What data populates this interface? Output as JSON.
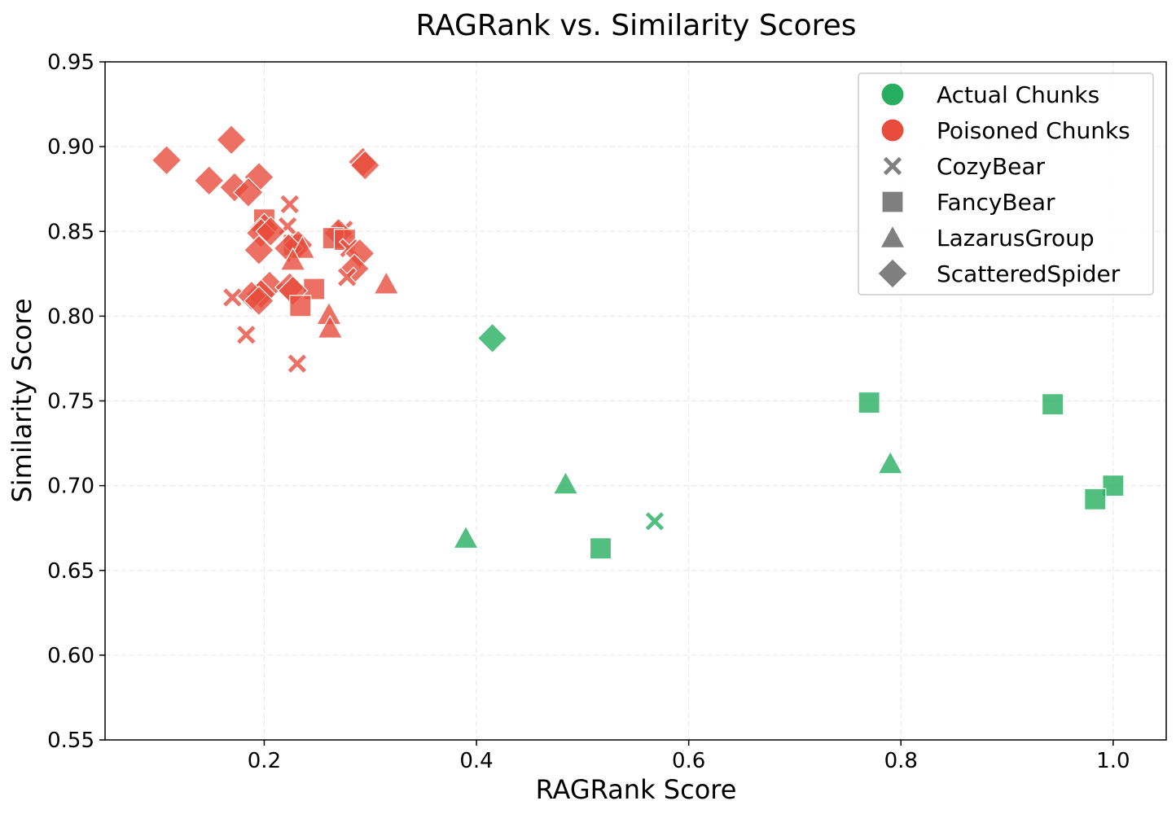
{
  "chart_data": {
    "type": "scatter",
    "title": "RAGRank vs. Similarity Scores",
    "xlabel": "RAGRank Score",
    "ylabel": "Similarity Score",
    "xlim": [
      0.05,
      1.05
    ],
    "ylim": [
      0.55,
      0.95
    ],
    "xticks": [
      0.2,
      0.4,
      0.6,
      0.8,
      1.0
    ],
    "xtick_labels": [
      "0.2",
      "0.4",
      "0.6",
      "0.8",
      "1.0"
    ],
    "yticks": [
      0.55,
      0.6,
      0.65,
      0.7,
      0.75,
      0.8,
      0.85,
      0.9,
      0.95
    ],
    "ytick_labels": [
      "0.55",
      "0.60",
      "0.65",
      "0.70",
      "0.75",
      "0.80",
      "0.85",
      "0.90",
      "0.95"
    ],
    "grid": true,
    "legend_position": "top-right",
    "colors": {
      "actual": "#27ae60",
      "poisoned": "#e74c3c",
      "legend_marker": "#7f7f7f"
    },
    "hue_legend": [
      {
        "label": "Actual Chunks",
        "group": "actual"
      },
      {
        "label": "Poisoned Chunks",
        "group": "poisoned"
      }
    ],
    "style_legend": [
      {
        "label": "CozyBear",
        "marker": "x"
      },
      {
        "label": "FancyBear",
        "marker": "square"
      },
      {
        "label": "LazarusGroup",
        "marker": "triangle"
      },
      {
        "label": "ScatteredSpider",
        "marker": "diamond"
      }
    ],
    "points": [
      {
        "x": 0.415,
        "y": 0.787,
        "group": "actual",
        "marker": "diamond"
      },
      {
        "x": 0.77,
        "y": 0.749,
        "group": "actual",
        "marker": "square"
      },
      {
        "x": 0.943,
        "y": 0.748,
        "group": "actual",
        "marker": "square"
      },
      {
        "x": 0.79,
        "y": 0.713,
        "group": "actual",
        "marker": "triangle"
      },
      {
        "x": 0.484,
        "y": 0.701,
        "group": "actual",
        "marker": "triangle"
      },
      {
        "x": 1.0,
        "y": 0.7,
        "group": "actual",
        "marker": "square"
      },
      {
        "x": 0.983,
        "y": 0.692,
        "group": "actual",
        "marker": "square"
      },
      {
        "x": 0.568,
        "y": 0.679,
        "group": "actual",
        "marker": "x"
      },
      {
        "x": 0.39,
        "y": 0.669,
        "group": "actual",
        "marker": "triangle"
      },
      {
        "x": 0.517,
        "y": 0.663,
        "group": "actual",
        "marker": "square"
      },
      {
        "x": 0.169,
        "y": 0.904,
        "group": "poisoned",
        "marker": "diamond"
      },
      {
        "x": 0.108,
        "y": 0.892,
        "group": "poisoned",
        "marker": "diamond"
      },
      {
        "x": 0.293,
        "y": 0.891,
        "group": "poisoned",
        "marker": "diamond"
      },
      {
        "x": 0.295,
        "y": 0.889,
        "group": "poisoned",
        "marker": "diamond"
      },
      {
        "x": 0.195,
        "y": 0.882,
        "group": "poisoned",
        "marker": "diamond"
      },
      {
        "x": 0.148,
        "y": 0.88,
        "group": "poisoned",
        "marker": "diamond"
      },
      {
        "x": 0.172,
        "y": 0.876,
        "group": "poisoned",
        "marker": "diamond"
      },
      {
        "x": 0.185,
        "y": 0.873,
        "group": "poisoned",
        "marker": "diamond"
      },
      {
        "x": 0.224,
        "y": 0.866,
        "group": "poisoned",
        "marker": "x"
      },
      {
        "x": 0.2,
        "y": 0.857,
        "group": "poisoned",
        "marker": "square"
      },
      {
        "x": 0.222,
        "y": 0.853,
        "group": "poisoned",
        "marker": "x"
      },
      {
        "x": 0.2,
        "y": 0.852,
        "group": "poisoned",
        "marker": "diamond"
      },
      {
        "x": 0.197,
        "y": 0.849,
        "group": "poisoned",
        "marker": "diamond"
      },
      {
        "x": 0.206,
        "y": 0.85,
        "group": "poisoned",
        "marker": "diamond"
      },
      {
        "x": 0.275,
        "y": 0.851,
        "group": "poisoned",
        "marker": "x"
      },
      {
        "x": 0.27,
        "y": 0.849,
        "group": "poisoned",
        "marker": "diamond"
      },
      {
        "x": 0.265,
        "y": 0.846,
        "group": "poisoned",
        "marker": "square"
      },
      {
        "x": 0.276,
        "y": 0.845,
        "group": "poisoned",
        "marker": "square"
      },
      {
        "x": 0.228,
        "y": 0.842,
        "group": "poisoned",
        "marker": "square"
      },
      {
        "x": 0.232,
        "y": 0.842,
        "group": "poisoned",
        "marker": "diamond"
      },
      {
        "x": 0.223,
        "y": 0.84,
        "group": "poisoned",
        "marker": "diamond"
      },
      {
        "x": 0.236,
        "y": 0.84,
        "group": "poisoned",
        "marker": "triangle"
      },
      {
        "x": 0.195,
        "y": 0.839,
        "group": "poisoned",
        "marker": "diamond"
      },
      {
        "x": 0.28,
        "y": 0.84,
        "group": "poisoned",
        "marker": "x"
      },
      {
        "x": 0.29,
        "y": 0.837,
        "group": "poisoned",
        "marker": "diamond"
      },
      {
        "x": 0.227,
        "y": 0.833,
        "group": "poisoned",
        "marker": "triangle"
      },
      {
        "x": 0.285,
        "y": 0.828,
        "group": "poisoned",
        "marker": "diamond"
      },
      {
        "x": 0.278,
        "y": 0.823,
        "group": "poisoned",
        "marker": "x"
      },
      {
        "x": 0.315,
        "y": 0.819,
        "group": "poisoned",
        "marker": "triangle"
      },
      {
        "x": 0.205,
        "y": 0.818,
        "group": "poisoned",
        "marker": "diamond"
      },
      {
        "x": 0.224,
        "y": 0.817,
        "group": "poisoned",
        "marker": "diamond"
      },
      {
        "x": 0.247,
        "y": 0.816,
        "group": "poisoned",
        "marker": "square"
      },
      {
        "x": 0.227,
        "y": 0.815,
        "group": "poisoned",
        "marker": "diamond"
      },
      {
        "x": 0.197,
        "y": 0.813,
        "group": "poisoned",
        "marker": "diamond"
      },
      {
        "x": 0.188,
        "y": 0.812,
        "group": "poisoned",
        "marker": "diamond"
      },
      {
        "x": 0.17,
        "y": 0.811,
        "group": "poisoned",
        "marker": "x"
      },
      {
        "x": 0.195,
        "y": 0.809,
        "group": "poisoned",
        "marker": "diamond"
      },
      {
        "x": 0.234,
        "y": 0.806,
        "group": "poisoned",
        "marker": "square"
      },
      {
        "x": 0.261,
        "y": 0.801,
        "group": "poisoned",
        "marker": "triangle"
      },
      {
        "x": 0.262,
        "y": 0.793,
        "group": "poisoned",
        "marker": "triangle"
      },
      {
        "x": 0.183,
        "y": 0.789,
        "group": "poisoned",
        "marker": "x"
      },
      {
        "x": 0.231,
        "y": 0.772,
        "group": "poisoned",
        "marker": "x"
      }
    ]
  }
}
